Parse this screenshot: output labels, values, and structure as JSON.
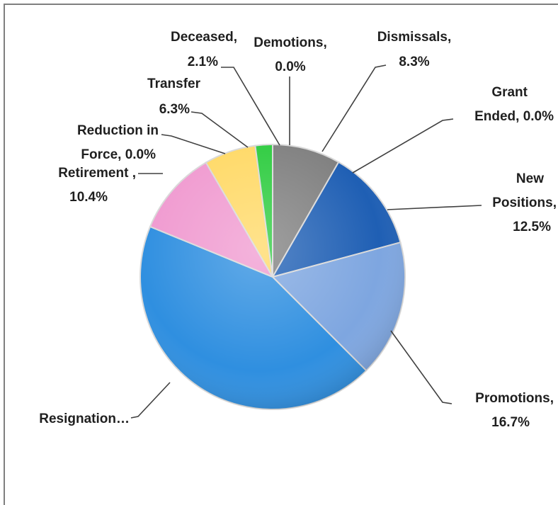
{
  "chart_data": {
    "type": "pie",
    "title": "",
    "slices": [
      {
        "key": "demotions",
        "label": "Demotions,",
        "value_text": "0.0%",
        "value": 0.0,
        "color": "#00b050"
      },
      {
        "key": "dismissals",
        "label": "Dismissals,",
        "value_text": "8.3%",
        "value": 8.3,
        "color": "#808080"
      },
      {
        "key": "grant_ended",
        "label": "Grant Ended,",
        "value_text": "0.0%",
        "value": 0.0,
        "color": "#7f7f7f"
      },
      {
        "key": "new_positions",
        "label": "New Positions,",
        "value_text": "12.5%",
        "value": 12.5,
        "color": "#1f5fb4"
      },
      {
        "key": "promotions",
        "label": "Promotions,",
        "value_text": "16.7%",
        "value": 16.7,
        "color": "#7ea6e0"
      },
      {
        "key": "resignation",
        "label": "Resignation…",
        "value_text": "",
        "value": 43.7,
        "color": "#2f8fe0"
      },
      {
        "key": "retirement",
        "label": "Retirement ,",
        "value_text": "10.4%",
        "value": 10.4,
        "color": "#f09ad0"
      },
      {
        "key": "reduction_in_force",
        "label": "Reduction in Force,",
        "value_text": "0.0%",
        "value": 0.0,
        "color": "#d0a0d0"
      },
      {
        "key": "transfer",
        "label": "Transfer",
        "value_text": "6.3%",
        "value": 6.3,
        "color": "#ffd966"
      },
      {
        "key": "deceased",
        "label": "Deceased,",
        "value_text": "2.1%",
        "value": 2.1,
        "color": "#2ecc40"
      }
    ]
  },
  "labels": {
    "deceased_1": "Deceased,",
    "deceased_2": "2.1%",
    "demotions_1": "Demotions,",
    "demotions_2": "0.0%",
    "dismissals_1": "Dismissals,",
    "dismissals_2": "8.3%",
    "grant_1": "Grant",
    "grant_2": "Ended, 0.0%",
    "newpos_1": "New",
    "newpos_2": "Positions,",
    "newpos_3": "12.5%",
    "promotions_1": "Promotions,",
    "promotions_2": "16.7%",
    "resignation_1": "Resignation…",
    "retirement_1": "Retirement ,",
    "retirement_2": "10.4%",
    "rif_1": "Reduction in",
    "rif_2": "Force, 0.0%",
    "transfer_1": "Transfer",
    "transfer_2": "6.3%"
  }
}
